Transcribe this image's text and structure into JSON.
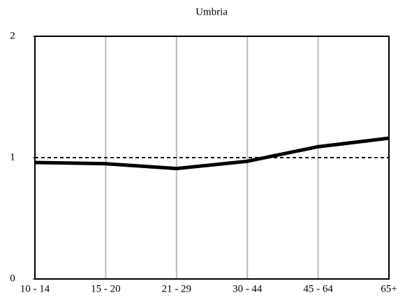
{
  "chart_data": {
    "type": "line",
    "title": "Umbria",
    "categories": [
      "10 - 14",
      "15 - 20",
      "21 - 29",
      "30 - 44",
      "45 - 64",
      "65+"
    ],
    "values": [
      0.96,
      0.95,
      0.91,
      0.97,
      1.09,
      1.16
    ],
    "color": "#000000",
    "ylim": [
      0,
      2
    ],
    "yticks": [
      0,
      1,
      2
    ],
    "grid": "x",
    "reference_line": 1
  }
}
